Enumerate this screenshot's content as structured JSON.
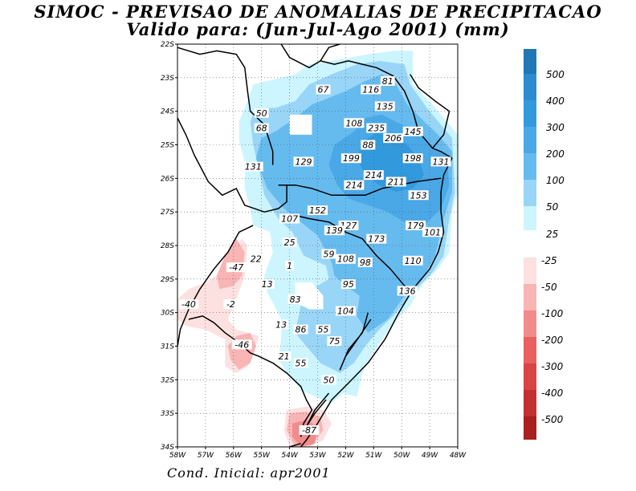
{
  "title_line1": "SIMOC - PREVISAO DE ANOMALIAS DE PRECIPITACAO",
  "title_line2": "Valido para: (Jun-Jul-Ago 2001) (mm)",
  "footer": "Cond. Inicial: apr2001",
  "map": {
    "lon_range": [
      -58,
      -48
    ],
    "lat_range": [
      -34,
      -22
    ],
    "lon_labels": [
      "58W",
      "57W",
      "56W",
      "55W",
      "54W",
      "53W",
      "52W",
      "51W",
      "50W",
      "49W",
      "48W"
    ],
    "lat_labels": [
      "22S",
      "23S",
      "24S",
      "25S",
      "26S",
      "27S",
      "28S",
      "29S",
      "30S",
      "31S",
      "32S",
      "33S",
      "34S"
    ]
  },
  "colorbar": {
    "positive": [
      {
        "label": "500",
        "color": "#1f78b4"
      },
      {
        "label": "400",
        "color": "#2b8cd0"
      },
      {
        "label": "300",
        "color": "#3399dd"
      },
      {
        "label": "200",
        "color": "#4aa8e6"
      },
      {
        "label": "100",
        "color": "#66bbee"
      },
      {
        "label": "50",
        "color": "#99d5f7"
      },
      {
        "label": "25",
        "color": "#ccf5ff"
      }
    ],
    "negative": [
      {
        "label": "-25",
        "color": "#fde0e0"
      },
      {
        "label": "-50",
        "color": "#f9b4b4"
      },
      {
        "label": "-100",
        "color": "#f08c8c"
      },
      {
        "label": "-200",
        "color": "#e86060"
      },
      {
        "label": "-300",
        "color": "#d94444"
      },
      {
        "label": "-400",
        "color": "#c43030"
      },
      {
        "label": "-500",
        "color": "#a82020"
      }
    ]
  },
  "values": [
    {
      "t": "67",
      "lon": -52.8,
      "lat": -23.35
    },
    {
      "t": "116",
      "lon": -51.1,
      "lat": -23.35
    },
    {
      "t": "81",
      "lon": -50.5,
      "lat": -23.1
    },
    {
      "t": "135",
      "lon": -50.6,
      "lat": -23.85
    },
    {
      "t": "50",
      "lon": -55.0,
      "lat": -24.05
    },
    {
      "t": "108",
      "lon": -51.7,
      "lat": -24.35
    },
    {
      "t": "235",
      "lon": -50.9,
      "lat": -24.5
    },
    {
      "t": "145",
      "lon": -49.6,
      "lat": -24.6
    },
    {
      "t": "68",
      "lon": -55.0,
      "lat": -24.5
    },
    {
      "t": "206",
      "lon": -50.3,
      "lat": -24.8
    },
    {
      "t": "88",
      "lon": -51.2,
      "lat": -25.0
    },
    {
      "t": "129",
      "lon": -53.5,
      "lat": -25.5
    },
    {
      "t": "199",
      "lon": -51.8,
      "lat": -25.4
    },
    {
      "t": "198",
      "lon": -49.6,
      "lat": -25.4
    },
    {
      "t": "131",
      "lon": -48.6,
      "lat": -25.5
    },
    {
      "t": "131",
      "lon": -55.3,
      "lat": -25.65
    },
    {
      "t": "214",
      "lon": -51.0,
      "lat": -25.9
    },
    {
      "t": "211",
      "lon": -50.2,
      "lat": -26.1
    },
    {
      "t": "214",
      "lon": -51.7,
      "lat": -26.2
    },
    {
      "t": "153",
      "lon": -49.4,
      "lat": -26.5
    },
    {
      "t": "152",
      "lon": -53.0,
      "lat": -26.95
    },
    {
      "t": "107",
      "lon": -54.0,
      "lat": -27.2
    },
    {
      "t": "127",
      "lon": -51.9,
      "lat": -27.4
    },
    {
      "t": "139",
      "lon": -52.4,
      "lat": -27.55
    },
    {
      "t": "179",
      "lon": -49.5,
      "lat": -27.4
    },
    {
      "t": "101",
      "lon": -48.9,
      "lat": -27.6
    },
    {
      "t": "173",
      "lon": -50.9,
      "lat": -27.8
    },
    {
      "t": "25",
      "lon": -54.0,
      "lat": -27.9
    },
    {
      "t": "59",
      "lon": -52.6,
      "lat": -28.25
    },
    {
      "t": "22",
      "lon": -55.2,
      "lat": -28.4
    },
    {
      "t": "108",
      "lon": -52.0,
      "lat": -28.4
    },
    {
      "t": "98",
      "lon": -51.3,
      "lat": -28.5
    },
    {
      "t": "110",
      "lon": -49.6,
      "lat": -28.45
    },
    {
      "t": "1",
      "lon": -54.0,
      "lat": -28.6
    },
    {
      "t": "-47",
      "lon": -55.9,
      "lat": -28.65
    },
    {
      "t": "13",
      "lon": -54.8,
      "lat": -29.15
    },
    {
      "t": "95",
      "lon": -51.9,
      "lat": -29.15
    },
    {
      "t": "136",
      "lon": -49.8,
      "lat": -29.35
    },
    {
      "t": "83",
      "lon": -53.8,
      "lat": -29.6
    },
    {
      "t": "-40",
      "lon": -57.6,
      "lat": -29.75
    },
    {
      "t": "-2",
      "lon": -56.1,
      "lat": -29.75
    },
    {
      "t": "104",
      "lon": -52.0,
      "lat": -29.95
    },
    {
      "t": "13",
      "lon": -54.3,
      "lat": -30.35
    },
    {
      "t": "86",
      "lon": -53.6,
      "lat": -30.5
    },
    {
      "t": "55",
      "lon": -52.8,
      "lat": -30.5
    },
    {
      "t": "75",
      "lon": -52.4,
      "lat": -30.85
    },
    {
      "t": "-46",
      "lon": -55.7,
      "lat": -30.95
    },
    {
      "t": "21",
      "lon": -54.2,
      "lat": -31.3
    },
    {
      "t": "55",
      "lon": -53.6,
      "lat": -31.5
    },
    {
      "t": "50",
      "lon": -52.6,
      "lat": -32.0
    },
    {
      "t": "-87",
      "lon": -53.3,
      "lat": -33.5
    }
  ]
}
